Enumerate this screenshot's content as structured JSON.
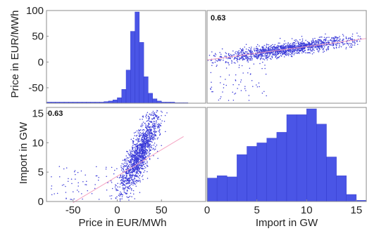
{
  "chart_data": {
    "type": "scatter-matrix",
    "variables": [
      "Price in EUR/MWh",
      "Import in GW"
    ],
    "correlation_label": "0.63",
    "colors": {
      "bars": "#4a55e6",
      "bar_edge": "#2e36c8",
      "points": "#3a3ad8",
      "fit_line": "#f4a0c0",
      "axis": "#8c8c8c"
    },
    "price_axis": {
      "lim": [
        -80,
        100
      ],
      "xticks": [
        -50,
        0,
        50
      ],
      "yticks": [
        -50,
        0,
        50,
        100
      ]
    },
    "import_axis": {
      "lim": [
        0,
        16
      ],
      "xticks": [
        0,
        5,
        10,
        15
      ],
      "yticks": [
        0,
        5,
        10,
        15
      ]
    },
    "price_histogram": {
      "bin_edges": [
        -80,
        -75,
        -70,
        -65,
        -60,
        -55,
        -50,
        -45,
        -40,
        -35,
        -30,
        -25,
        -20,
        -15,
        -10,
        -5,
        0,
        5,
        10,
        15,
        20,
        25,
        30,
        35,
        40,
        45,
        50,
        55,
        60,
        65,
        70,
        75,
        80
      ],
      "counts": [
        2,
        2,
        2,
        2,
        2,
        2,
        2,
        2,
        2,
        2,
        2,
        2,
        2,
        3,
        4,
        6,
        10,
        25,
        60,
        130,
        165,
        110,
        48,
        18,
        8,
        4,
        2,
        2,
        2,
        1,
        1,
        1
      ]
    },
    "import_histogram": {
      "bin_edges": [
        0,
        1,
        2,
        3,
        4,
        5,
        6,
        7,
        8,
        9,
        10,
        11,
        12,
        13,
        14,
        15,
        16
      ],
      "counts": [
        40,
        44,
        42,
        80,
        94,
        100,
        108,
        118,
        148,
        148,
        158,
        132,
        76,
        44,
        12,
        2
      ]
    },
    "fit": {
      "slope": 0.09,
      "intercept": 4.3
    }
  },
  "panels": {
    "top_left_ylabel": "Price in EUR/MWh",
    "bottom_left_ylabel": "Import in GW",
    "bottom_left_xlabel": "Price in EUR/MWh",
    "bottom_right_xlabel": "Import in GW"
  }
}
